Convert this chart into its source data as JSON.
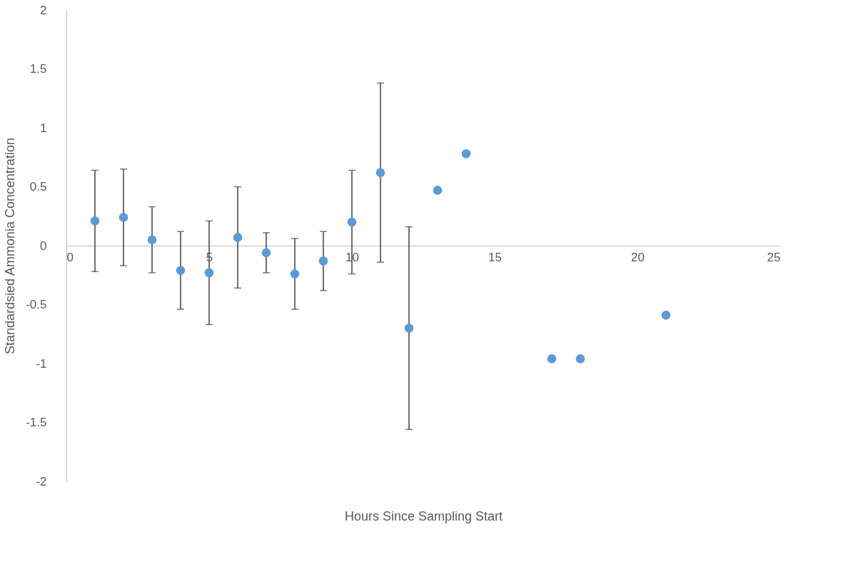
{
  "chart_data": {
    "type": "scatter",
    "xlabel": "Hours Since Sampling Start",
    "ylabel": "Standardsied Ammonia Concentration",
    "x": [
      1,
      2,
      3,
      4,
      5,
      6,
      7,
      8,
      9,
      10,
      11,
      12,
      13,
      14,
      17,
      18,
      21
    ],
    "series": [
      {
        "color": "#5b9bd5",
        "values": [
          0.21,
          0.24,
          0.05,
          -0.21,
          -0.23,
          0.07,
          -0.06,
          -0.24,
          -0.13,
          0.2,
          0.62,
          -0.7,
          0.47,
          0.78,
          -0.96,
          -0.96,
          -0.59
        ],
        "errors": [
          0.43,
          0.41,
          0.28,
          0.33,
          0.44,
          0.43,
          0.17,
          0.3,
          0.25,
          0.44,
          0.76,
          0.86,
          null,
          null,
          null,
          null,
          null
        ]
      }
    ],
    "xlim": [
      0,
      25
    ],
    "xticks": [
      0,
      5,
      10,
      15,
      20,
      25
    ],
    "ylim": [
      -2,
      2
    ],
    "yticks": [
      -2,
      -1.5,
      -1,
      -0.5,
      0,
      0.5,
      1,
      1.5,
      2
    ],
    "marker": "circle",
    "grid": false
  }
}
